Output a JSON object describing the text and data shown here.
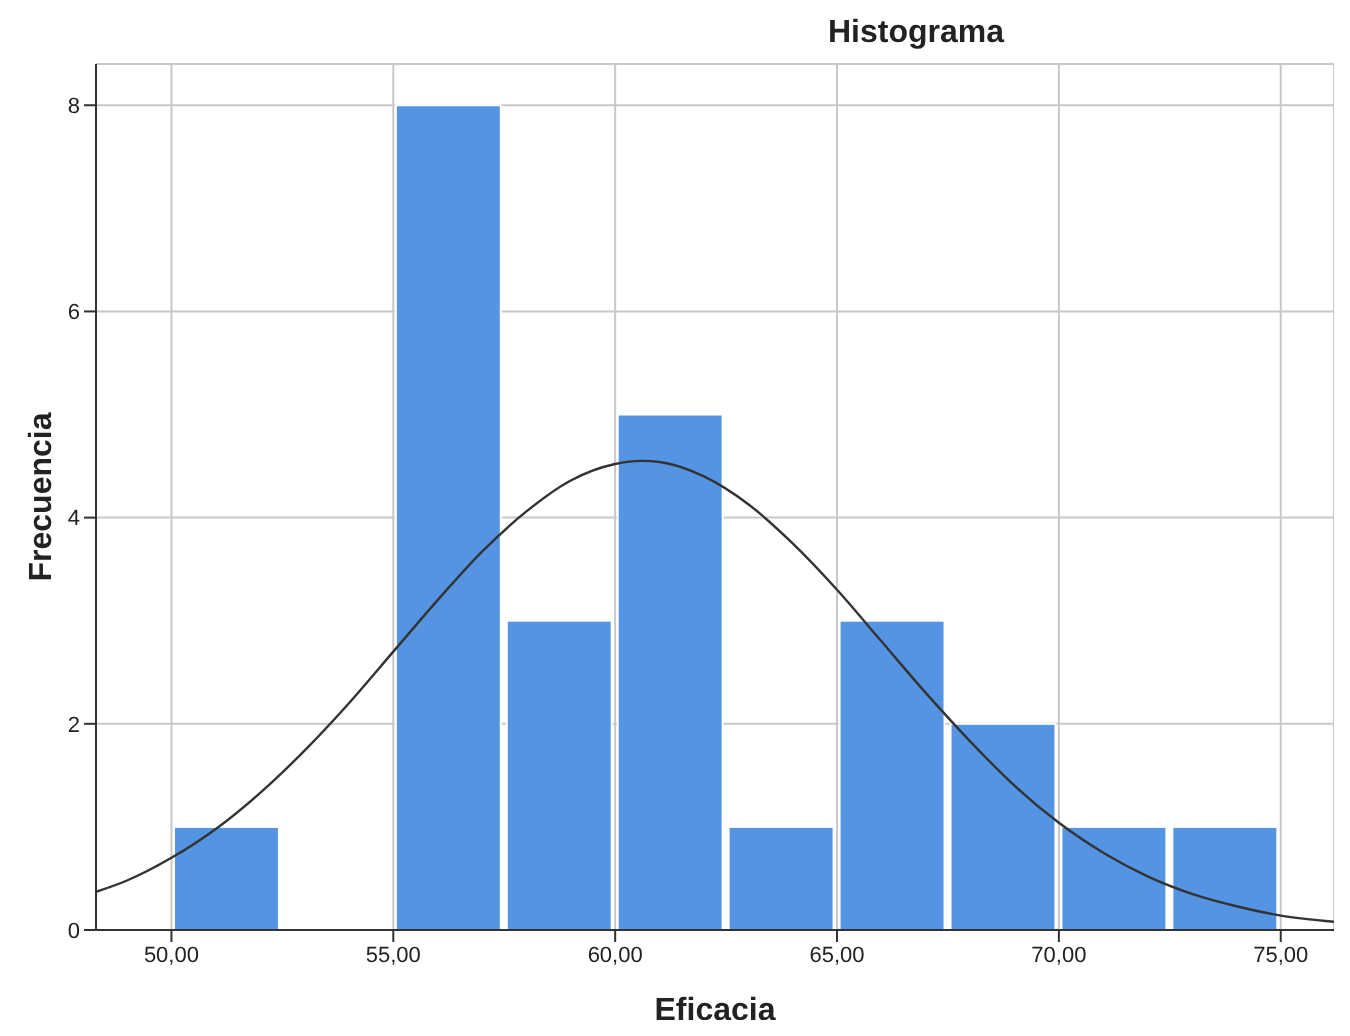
{
  "chart_data": {
    "type": "histogram",
    "title": "Histograma",
    "xlabel": "Eficacia",
    "ylabel": "Frecuencia",
    "bins": [
      50,
      52.5,
      55,
      57.5,
      60,
      62.5,
      65,
      67.5,
      70,
      72.5,
      75
    ],
    "values": [
      1,
      0,
      8,
      3,
      5,
      1,
      3,
      2,
      1,
      1
    ],
    "color": "#5594e2",
    "series": [
      {
        "type": "line",
        "color": "#333333",
        "x": [
          48.3,
          49,
          50,
          51,
          52,
          53,
          54,
          55,
          56,
          57,
          58,
          59,
          60,
          60.6,
          61,
          62,
          63,
          64,
          65,
          66,
          67,
          68,
          69,
          70,
          71,
          72,
          73,
          74,
          75,
          76.2
        ],
        "values": [
          0.37,
          0.48,
          0.7,
          0.98,
          1.33,
          1.74,
          2.2,
          2.7,
          3.2,
          3.67,
          4.06,
          4.36,
          4.52,
          4.55,
          4.54,
          4.4,
          4.13,
          3.75,
          3.3,
          2.8,
          2.3,
          1.83,
          1.4,
          1.04,
          0.75,
          0.52,
          0.35,
          0.23,
          0.14,
          0.08
        ]
      }
    ],
    "xlim": [
      48.3,
      76.2
    ],
    "xticks": [
      {
        "value": 50,
        "label": "50,00"
      },
      {
        "value": 55,
        "label": "55,00"
      },
      {
        "value": 60,
        "label": "60,00"
      },
      {
        "value": 65,
        "label": "65,00"
      },
      {
        "value": 70,
        "label": "70,00"
      },
      {
        "value": 75,
        "label": "75,00"
      }
    ],
    "ylim": [
      0,
      8.4
    ],
    "yticks": [
      0,
      2,
      4,
      6,
      8
    ],
    "grid": true,
    "marker": "none",
    "legend": false
  }
}
